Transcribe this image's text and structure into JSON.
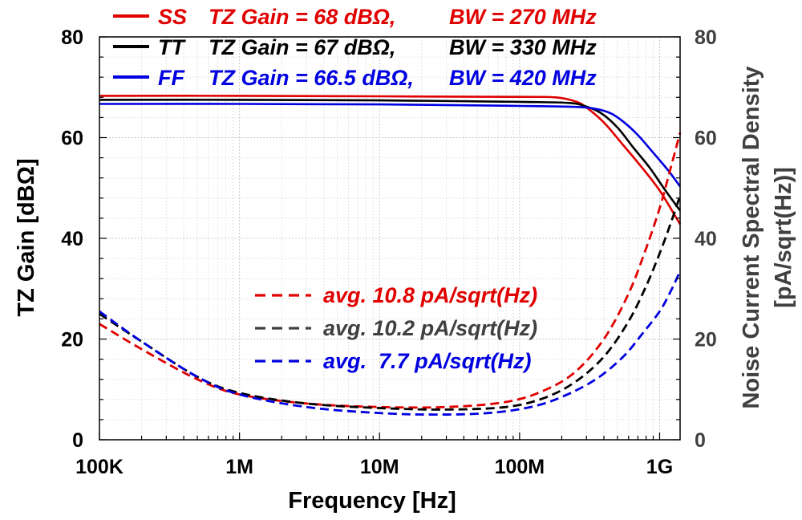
{
  "chart_data": {
    "type": "line",
    "x_scale": "log",
    "xlabel": "Frequency [Hz]",
    "ylabel": "TZ Gain [dBΩ]",
    "ylabel_right": [
      "Noise Current Spectral Density",
      "[pA/sqrt(Hz)]"
    ],
    "xlim": [
      100000,
      1400000000
    ],
    "ylim": [
      0,
      80
    ],
    "ylim_right": [
      0,
      80
    ],
    "x_ticks": [
      {
        "value": 100000,
        "label": "100K"
      },
      {
        "value": 1000000,
        "label": "1M"
      },
      {
        "value": 10000000,
        "label": "10M"
      },
      {
        "value": 100000000,
        "label": "100M"
      },
      {
        "value": 1000000000,
        "label": "1G"
      }
    ],
    "y_ticks": [
      0,
      20,
      40,
      60,
      80
    ],
    "y_ticks_right": [
      0,
      20,
      40,
      60,
      80
    ],
    "grid": true,
    "legend_top": [
      {
        "corner": "SS",
        "text": "TZ Gain = 68 dBΩ,",
        "bw": "BW = 270 MHz",
        "color": "#e00000"
      },
      {
        "corner": "TT",
        "text": "TZ Gain = 67 dBΩ,",
        "bw": "BW = 330 MHz",
        "color": "#000000"
      },
      {
        "corner": "FF",
        "text": "TZ Gain = 66.5 dBΩ,",
        "bw": "BW = 420 MHz",
        "color": "#0000e0"
      }
    ],
    "legend_noise": [
      {
        "text": "avg. 10.8 pA/sqrt(Hz)",
        "color": "#e00000"
      },
      {
        "text": "avg. 10.2 pA/sqrt(Hz)",
        "color": "#404040"
      },
      {
        "text": "avg.  7.7 pA/sqrt(Hz)",
        "color": "#0000e0"
      }
    ],
    "series": [
      {
        "corner": "SS",
        "kind": "gain",
        "axis": "left",
        "color": "#e00000",
        "x": [
          100000,
          1000000,
          10000000,
          100000000,
          180000000,
          250000000,
          300000000,
          400000000,
          550000000,
          750000000,
          1000000000,
          1400000000
        ],
        "y": [
          68.3,
          68.3,
          68.2,
          68.1,
          68.0,
          67.2,
          66.0,
          63.0,
          58.5,
          54.0,
          49.5,
          42.8
        ]
      },
      {
        "corner": "TT",
        "kind": "gain",
        "axis": "left",
        "color": "#000000",
        "x": [
          100000,
          1000000,
          10000000,
          100000000,
          220000000,
          290000000,
          380000000,
          500000000,
          650000000,
          850000000,
          1100000000,
          1400000000
        ],
        "y": [
          67.5,
          67.5,
          67.4,
          67.1,
          66.9,
          66.3,
          64.9,
          62.0,
          58.0,
          54.0,
          49.5,
          45.5
        ]
      },
      {
        "corner": "FF",
        "kind": "gain",
        "axis": "left",
        "color": "#0000e0",
        "x": [
          100000,
          1000000,
          10000000,
          100000000,
          250000000,
          350000000,
          450000000,
          560000000,
          700000000,
          900000000,
          1150000000,
          1400000000
        ],
        "y": [
          66.7,
          66.7,
          66.6,
          66.3,
          66.1,
          65.7,
          64.8,
          63.0,
          60.5,
          57.0,
          53.5,
          50.3
        ]
      },
      {
        "corner": "SS",
        "kind": "noise",
        "axis": "right",
        "color": "#e00000",
        "x": [
          100000,
          200000,
          500000,
          1000000,
          3000000,
          10000000,
          30000000,
          80000000,
          150000000,
          250000000,
          400000000,
          600000000,
          800000000,
          1000000000,
          1200000000,
          1400000000
        ],
        "y": [
          23.0,
          18.0,
          12.0,
          9.0,
          7.2,
          6.5,
          6.5,
          7.5,
          9.8,
          13.5,
          20.0,
          29.0,
          38.0,
          46.0,
          54.0,
          61.0
        ]
      },
      {
        "corner": "TT",
        "kind": "noise",
        "axis": "right",
        "color": "#000000",
        "x": [
          100000,
          200000,
          500000,
          1000000,
          3000000,
          10000000,
          30000000,
          80000000,
          150000000,
          250000000,
          400000000,
          600000000,
          800000000,
          1000000000,
          1200000000,
          1400000000
        ],
        "y": [
          25.0,
          19.5,
          12.5,
          9.3,
          7.2,
          6.3,
          6.0,
          6.5,
          8.3,
          11.5,
          16.5,
          23.5,
          30.5,
          37.0,
          43.0,
          48.5
        ]
      },
      {
        "corner": "FF",
        "kind": "noise",
        "axis": "right",
        "color": "#0000e0",
        "x": [
          100000,
          200000,
          500000,
          1000000,
          3000000,
          10000000,
          25000000,
          60000000,
          120000000,
          200000000,
          350000000,
          550000000,
          750000000,
          1000000000,
          1200000000,
          1400000000
        ],
        "y": [
          25.5,
          19.5,
          12.5,
          9.0,
          6.5,
          5.3,
          5.0,
          5.3,
          6.5,
          8.5,
          12.0,
          16.5,
          21.0,
          25.5,
          29.5,
          33.5
        ]
      }
    ]
  }
}
